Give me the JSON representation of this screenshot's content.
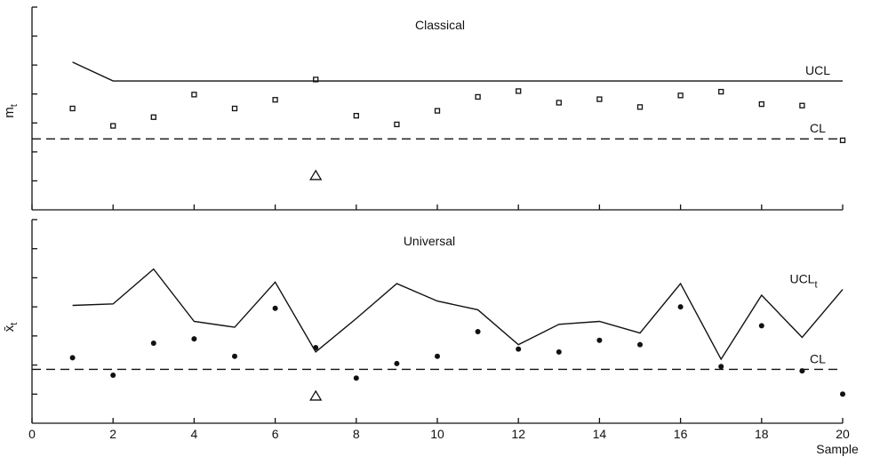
{
  "chart_data": [
    {
      "type": "line",
      "title": "Classical",
      "ylabel": "m_t",
      "ylabel_main": "m",
      "ylabel_sub": "t",
      "xlabel": "",
      "xlim": [
        0,
        20
      ],
      "ylim": [
        0,
        7
      ],
      "grid": false,
      "series": [
        {
          "name": "UCL",
          "style": "solid",
          "x": [
            1,
            2,
            20
          ],
          "y": [
            5.1,
            4.45,
            4.45
          ]
        },
        {
          "name": "CL",
          "style": "dashed",
          "x": [
            0,
            20
          ],
          "y": [
            2.45,
            2.45
          ]
        },
        {
          "name": "",
          "style": "square-markers",
          "x": [
            1,
            2,
            3,
            4,
            5,
            6,
            7,
            8,
            9,
            10,
            11,
            12,
            13,
            14,
            15,
            16,
            17,
            18,
            19,
            20
          ],
          "y": [
            3.5,
            2.9,
            3.2,
            3.98,
            3.5,
            3.8,
            4.5,
            3.25,
            2.95,
            3.42,
            3.9,
            4.1,
            3.7,
            3.82,
            3.55,
            3.95,
            4.08,
            3.65,
            3.6,
            2.4
          ]
        }
      ],
      "annotations": [
        {
          "type": "triangle",
          "x": 7,
          "y": 1.2
        }
      ]
    },
    {
      "type": "line",
      "title": "Universal",
      "ylabel": "x̄_t",
      "ylabel_main": "x̄",
      "ylabel_sub": "t",
      "xlabel": "Sample",
      "xlim": [
        0,
        20
      ],
      "ylim": [
        0,
        7
      ],
      "grid": false,
      "xticks": [
        0,
        2,
        4,
        6,
        8,
        10,
        12,
        14,
        16,
        18,
        20
      ],
      "series": [
        {
          "name": "UCL_t",
          "label_main": "UCL",
          "label_sub": "t",
          "style": "solid",
          "x": [
            1,
            2,
            3,
            4,
            5,
            6,
            7,
            8,
            9,
            10,
            11,
            12,
            13,
            14,
            15,
            16,
            17,
            18,
            19,
            20
          ],
          "y": [
            4.05,
            4.1,
            5.3,
            3.5,
            3.3,
            4.85,
            2.45,
            3.6,
            4.8,
            4.2,
            3.9,
            2.7,
            3.4,
            3.5,
            3.1,
            4.8,
            2.2,
            4.4,
            2.95,
            4.6
          ]
        },
        {
          "name": "CL",
          "style": "dashed",
          "x": [
            0,
            20
          ],
          "y": [
            1.85,
            1.85
          ]
        },
        {
          "name": "",
          "style": "dot-markers",
          "x": [
            1,
            2,
            3,
            4,
            5,
            6,
            7,
            8,
            9,
            10,
            11,
            12,
            13,
            14,
            15,
            16,
            17,
            18,
            19,
            20
          ],
          "y": [
            2.25,
            1.65,
            2.75,
            2.9,
            2.3,
            3.95,
            2.6,
            1.55,
            2.05,
            2.3,
            3.15,
            2.55,
            2.45,
            2.85,
            2.7,
            4.0,
            1.95,
            3.35,
            1.8,
            1.0
          ]
        }
      ],
      "annotations": [
        {
          "type": "triangle",
          "x": 7,
          "y": 0.95
        }
      ]
    }
  ]
}
